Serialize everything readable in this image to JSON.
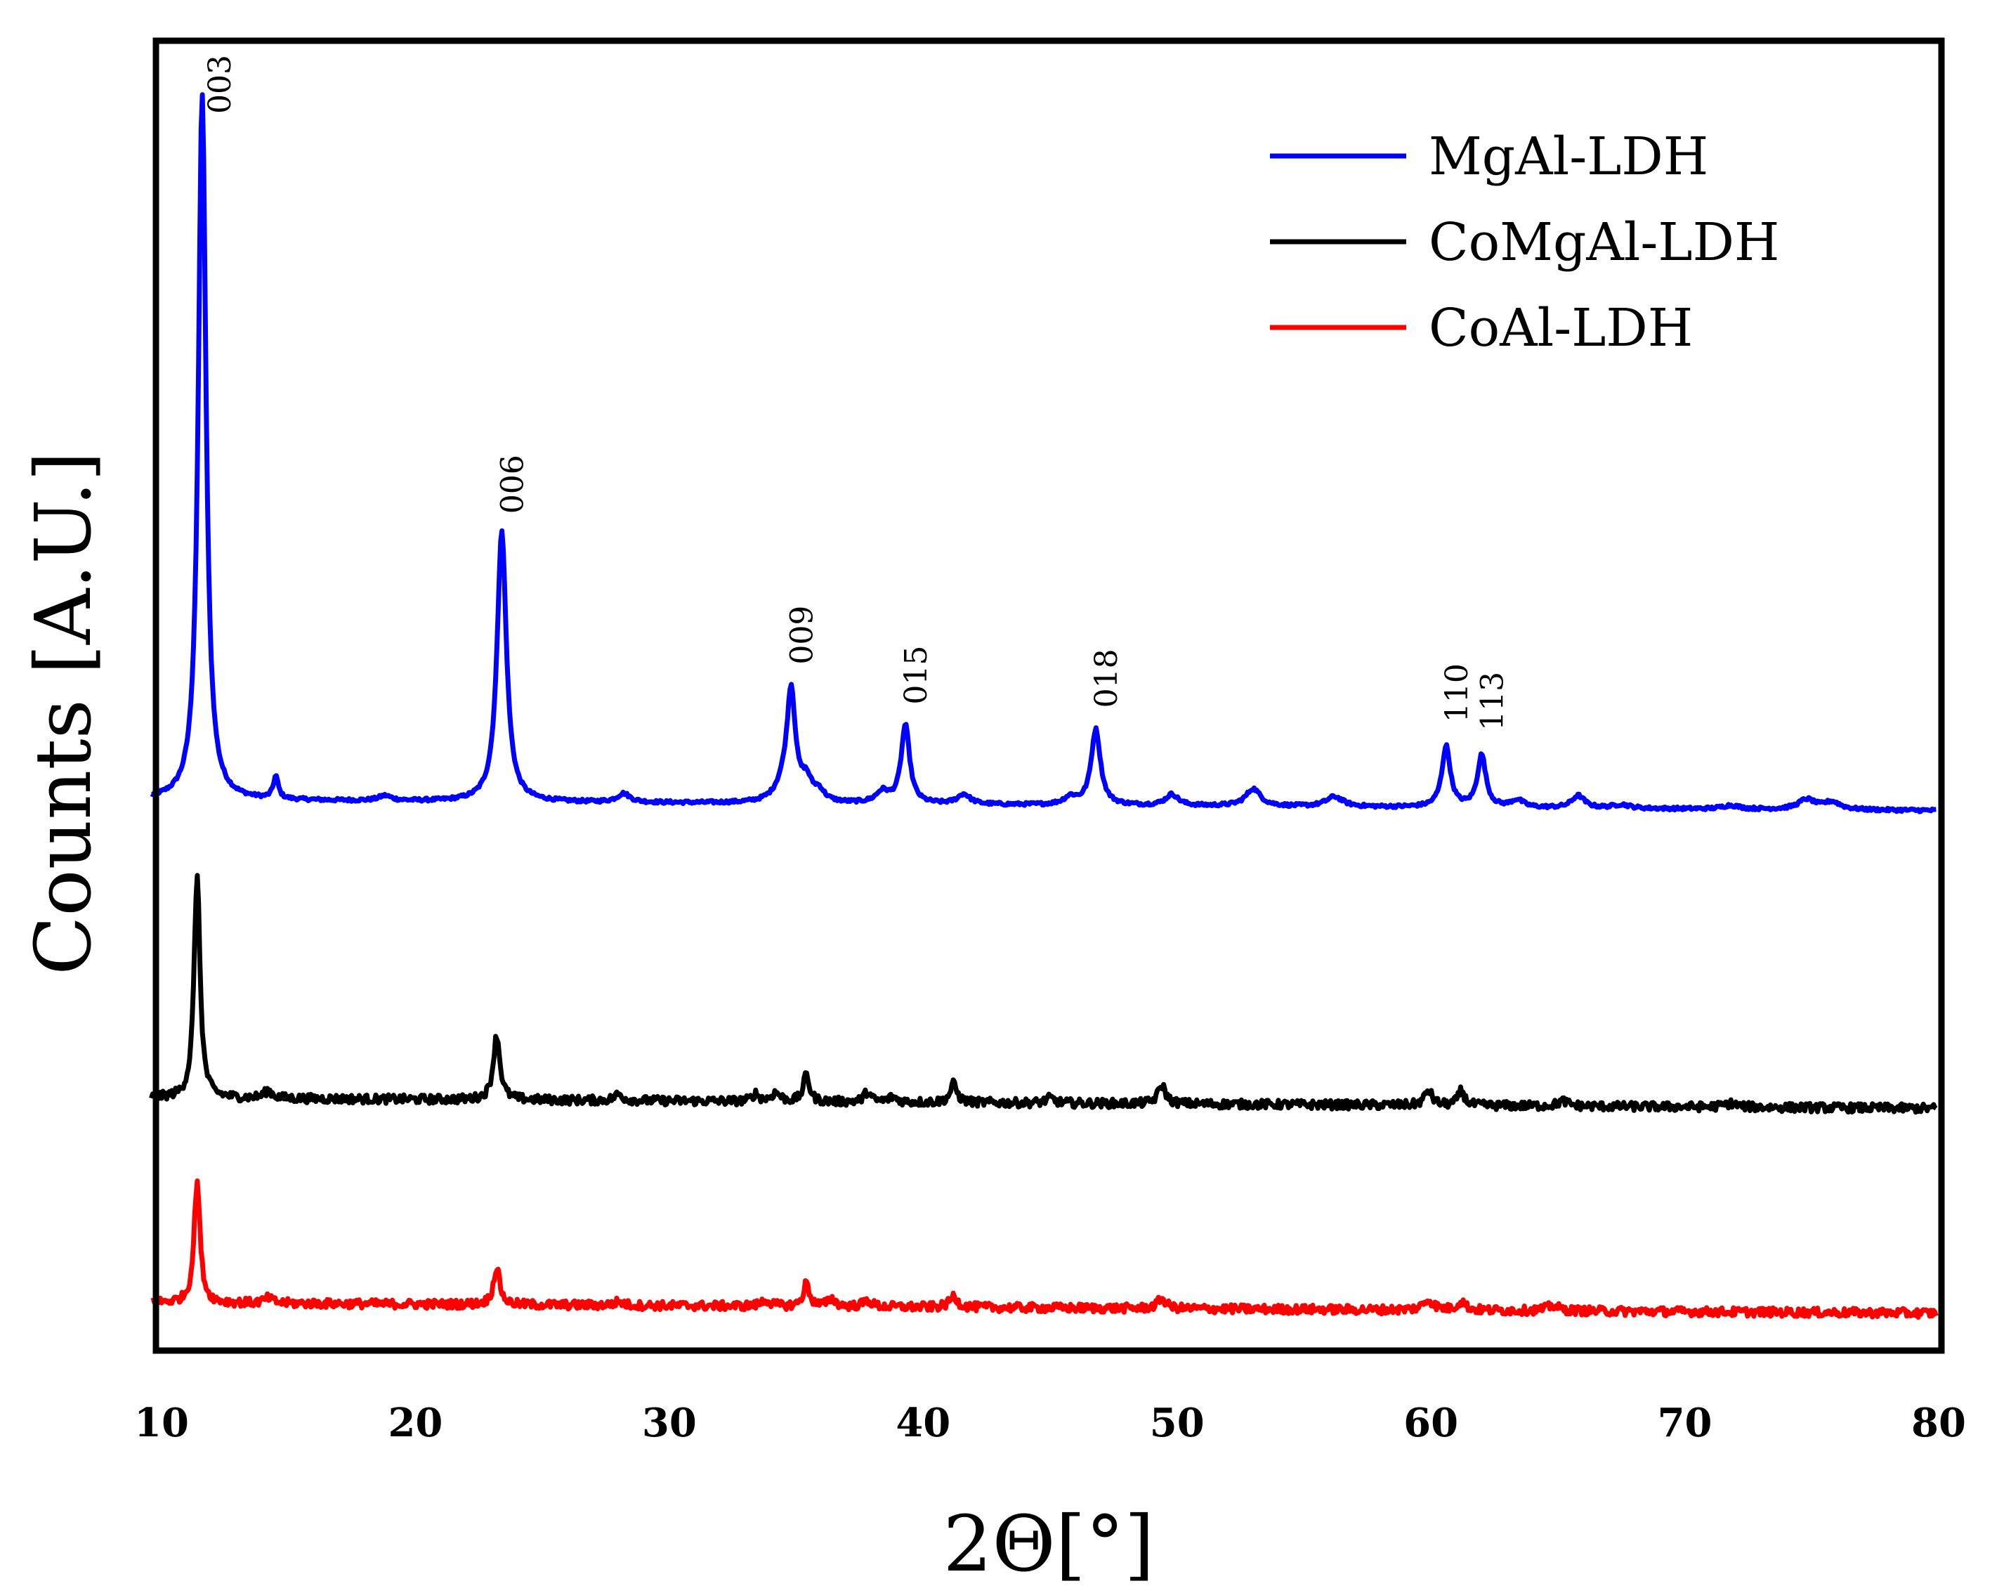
{
  "chart_data": {
    "type": "line",
    "title": "",
    "xlabel": "2Θ[°]",
    "ylabel": "Counts [A.U.]",
    "xlim": [
      10,
      80
    ],
    "ylim": [
      0,
      100
    ],
    "x_ticks": [
      10,
      20,
      30,
      40,
      50,
      60,
      70,
      80
    ],
    "y_ticks_shown": false,
    "grid": false,
    "legend_position": "top-right",
    "series": [
      {
        "name": "MgAl-LDH",
        "color": "#0000ff",
        "baseline": 43.0,
        "peaks": [
          {
            "x": 11.6,
            "height": 57,
            "width": 0.18
          },
          {
            "x": 14.5,
            "height": 1.8,
            "width": 0.12
          },
          {
            "x": 18.8,
            "height": 0.4,
            "width": 0.3
          },
          {
            "x": 23.4,
            "height": 21.8,
            "width": 0.22
          },
          {
            "x": 28.2,
            "height": 0.7,
            "width": 0.3
          },
          {
            "x": 34.5,
            "height": 1.2,
            "width": 0.4
          },
          {
            "x": 34.8,
            "height": 8.6,
            "width": 0.2
          },
          {
            "x": 35.4,
            "height": 1.6,
            "width": 0.25
          },
          {
            "x": 35.9,
            "height": 0.8,
            "width": 0.25
          },
          {
            "x": 38.4,
            "height": 0.9,
            "width": 0.3
          },
          {
            "x": 39.3,
            "height": 6.3,
            "width": 0.2
          },
          {
            "x": 41.6,
            "height": 0.8,
            "width": 0.3
          },
          {
            "x": 45.8,
            "height": 0.6,
            "width": 0.3
          },
          {
            "x": 46.8,
            "height": 6.1,
            "width": 0.22
          },
          {
            "x": 49.8,
            "height": 0.9,
            "width": 0.3
          },
          {
            "x": 53.0,
            "height": 1.4,
            "width": 0.35
          },
          {
            "x": 56.2,
            "height": 0.8,
            "width": 0.4
          },
          {
            "x": 60.6,
            "height": 4.9,
            "width": 0.2
          },
          {
            "x": 62.0,
            "height": 4.2,
            "width": 0.2
          },
          {
            "x": 63.4,
            "height": 0.6,
            "width": 0.3
          },
          {
            "x": 65.8,
            "height": 1.0,
            "width": 0.3
          },
          {
            "x": 67.5,
            "height": 0.3,
            "width": 0.4
          },
          {
            "x": 71.8,
            "height": 0.3,
            "width": 0.4
          },
          {
            "x": 74.8,
            "height": 0.8,
            "width": 0.4
          },
          {
            "x": 75.8,
            "height": 0.6,
            "width": 0.4
          }
        ]
      },
      {
        "name": "CoMgAl-LDH",
        "color": "#000000",
        "baseline": 19.0,
        "peaks": [
          {
            "x": 11.4,
            "height": 18.0,
            "width": 0.14
          },
          {
            "x": 14.2,
            "height": 0.6,
            "width": 0.2
          },
          {
            "x": 23.2,
            "height": 5.2,
            "width": 0.16
          },
          {
            "x": 28.0,
            "height": 0.5,
            "width": 0.2
          },
          {
            "x": 33.4,
            "height": 0.6,
            "width": 0.15
          },
          {
            "x": 34.2,
            "height": 0.7,
            "width": 0.2
          },
          {
            "x": 35.4,
            "height": 2.2,
            "width": 0.14
          },
          {
            "x": 37.8,
            "height": 0.8,
            "width": 0.15
          },
          {
            "x": 38.8,
            "height": 0.4,
            "width": 0.2
          },
          {
            "x": 41.2,
            "height": 1.5,
            "width": 0.16
          },
          {
            "x": 45.0,
            "height": 0.4,
            "width": 0.2
          },
          {
            "x": 49.4,
            "height": 1.5,
            "width": 0.18
          },
          {
            "x": 59.9,
            "height": 1.2,
            "width": 0.18
          },
          {
            "x": 61.2,
            "height": 1.2,
            "width": 0.15
          },
          {
            "x": 65.2,
            "height": 0.4,
            "width": 0.25
          },
          {
            "x": 71.8,
            "height": 0.3,
            "width": 0.3
          }
        ]
      },
      {
        "name": "CoAl-LDH",
        "color": "#ff0000",
        "baseline": 2.5,
        "peaks": [
          {
            "x": 11.4,
            "height": 9.8,
            "width": 0.14
          },
          {
            "x": 14.2,
            "height": 0.4,
            "width": 0.2
          },
          {
            "x": 23.2,
            "height": 3.0,
            "width": 0.15
          },
          {
            "x": 28.0,
            "height": 0.3,
            "width": 0.2
          },
          {
            "x": 33.8,
            "height": 0.5,
            "width": 0.2
          },
          {
            "x": 35.4,
            "height": 1.9,
            "width": 0.14
          },
          {
            "x": 36.4,
            "height": 0.6,
            "width": 0.18
          },
          {
            "x": 37.8,
            "height": 0.5,
            "width": 0.2
          },
          {
            "x": 41.2,
            "height": 0.9,
            "width": 0.18
          },
          {
            "x": 49.4,
            "height": 0.8,
            "width": 0.2
          },
          {
            "x": 59.9,
            "height": 0.8,
            "width": 0.25
          },
          {
            "x": 61.2,
            "height": 0.7,
            "width": 0.2
          },
          {
            "x": 64.8,
            "height": 0.4,
            "width": 0.3
          }
        ]
      }
    ],
    "annotations": [
      {
        "text": "003",
        "x": 11.6
      },
      {
        "text": "006",
        "x": 23.4
      },
      {
        "text": "009",
        "x": 34.8
      },
      {
        "text": "015",
        "x": 39.3
      },
      {
        "text": "018",
        "x": 46.8
      },
      {
        "text": "110",
        "x": 60.6
      },
      {
        "text": "113",
        "x": 62.0
      }
    ]
  }
}
